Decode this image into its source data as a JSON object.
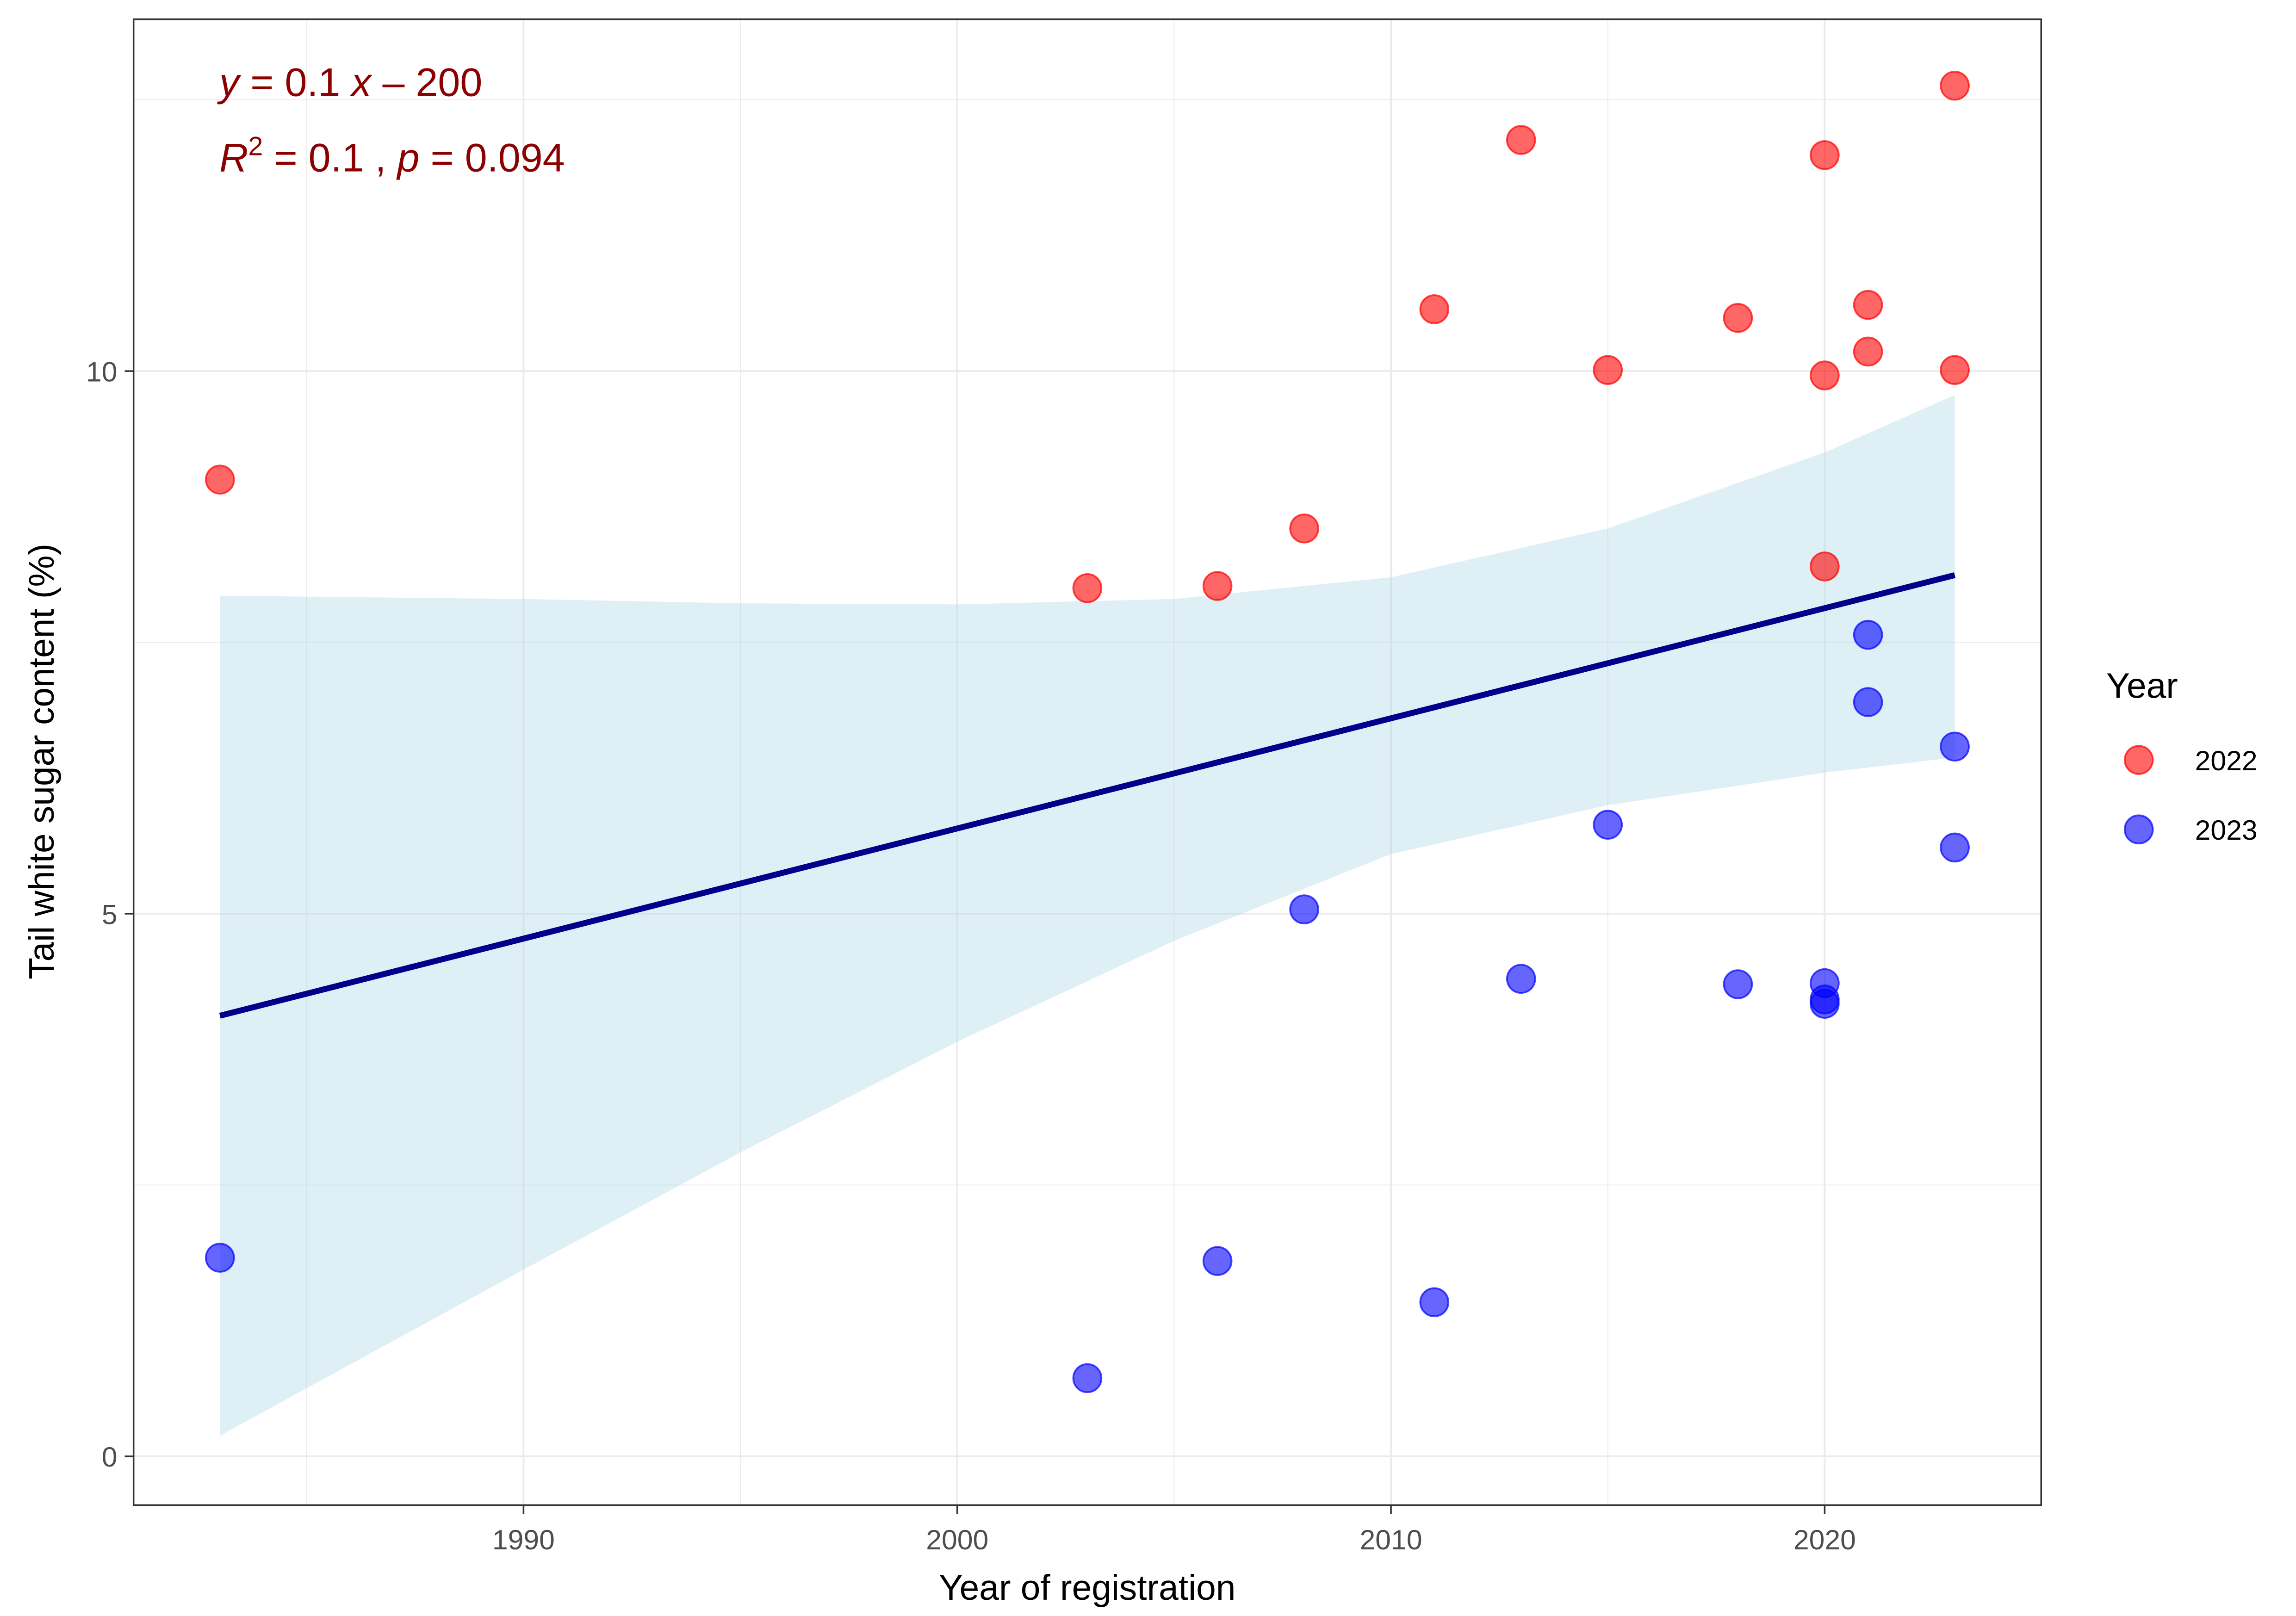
{
  "chart_data": {
    "type": "scatter",
    "title": "",
    "xlabel": "Year of registration",
    "ylabel": "Tail white sugar content (%)",
    "xlim": [
      1981,
      2025
    ],
    "ylim": [
      -0.45,
      13.4
    ],
    "x_ticks": [
      1990,
      2000,
      2010,
      2020
    ],
    "x_tick_labels": [
      "1990",
      "2000",
      "2010",
      "2020"
    ],
    "y_ticks": [
      0,
      5,
      10
    ],
    "y_tick_labels": [
      "0",
      "5",
      "10"
    ],
    "grid": true,
    "legend": {
      "title": "Year",
      "placement": "right",
      "entries": [
        {
          "label": "2022",
          "color": "#ff0000"
        },
        {
          "label": "2023",
          "color": "#0000ff"
        }
      ]
    },
    "series": [
      {
        "name": "2022",
        "color": "#ff0000",
        "points": [
          {
            "x": 1983,
            "y": 9.0
          },
          {
            "x": 2003,
            "y": 8.0
          },
          {
            "x": 2006,
            "y": 8.02
          },
          {
            "x": 2008,
            "y": 8.55
          },
          {
            "x": 2011,
            "y": 10.57
          },
          {
            "x": 2013,
            "y": 12.13
          },
          {
            "x": 2015,
            "y": 10.01
          },
          {
            "x": 2018,
            "y": 10.49
          },
          {
            "x": 2020,
            "y": 11.99
          },
          {
            "x": 2020,
            "y": 9.96
          },
          {
            "x": 2020,
            "y": 8.2
          },
          {
            "x": 2021,
            "y": 10.61
          },
          {
            "x": 2021,
            "y": 10.18
          },
          {
            "x": 2023,
            "y": 12.63
          },
          {
            "x": 2023,
            "y": 10.01
          }
        ]
      },
      {
        "name": "2023",
        "color": "#0000ff",
        "points": [
          {
            "x": 1983,
            "y": 1.83
          },
          {
            "x": 2003,
            "y": 0.72
          },
          {
            "x": 2006,
            "y": 1.8
          },
          {
            "x": 2008,
            "y": 5.04
          },
          {
            "x": 2011,
            "y": 1.42
          },
          {
            "x": 2013,
            "y": 4.4
          },
          {
            "x": 2015,
            "y": 5.82
          },
          {
            "x": 2018,
            "y": 4.35
          },
          {
            "x": 2020,
            "y": 4.36
          },
          {
            "x": 2020,
            "y": 4.21
          },
          {
            "x": 2020,
            "y": 4.17
          },
          {
            "x": 2021,
            "y": 7.57
          },
          {
            "x": 2021,
            "y": 6.95
          },
          {
            "x": 2023,
            "y": 6.54
          },
          {
            "x": 2023,
            "y": 5.61
          }
        ]
      }
    ],
    "regression": {
      "color": "#00008b",
      "band_color": "#add8e6",
      "line": [
        {
          "x": 1983,
          "y": 4.06
        },
        {
          "x": 2023,
          "y": 8.12
        }
      ],
      "confidence_band": [
        {
          "x": 1983,
          "lower": 0.19,
          "upper": 7.93
        },
        {
          "x": 1990,
          "lower": 1.72,
          "upper": 7.9
        },
        {
          "x": 1995,
          "lower": 2.8,
          "upper": 7.86
        },
        {
          "x": 2000,
          "lower": 3.82,
          "upper": 7.85
        },
        {
          "x": 2005,
          "lower": 4.75,
          "upper": 7.9
        },
        {
          "x": 2010,
          "lower": 5.55,
          "upper": 8.1
        },
        {
          "x": 2015,
          "lower": 6.0,
          "upper": 8.55
        },
        {
          "x": 2020,
          "lower": 6.3,
          "upper": 9.25
        },
        {
          "x": 2023,
          "lower": 6.44,
          "upper": 9.78
        }
      ]
    },
    "annotations": {
      "equation": {
        "y_var": "y",
        "eq_mid": " = 0.1 ",
        "x_var": "x",
        "eq_end": " – 200"
      },
      "stats": {
        "r_var": "R",
        "r_sup": "2",
        "r_mid": " = 0.1 , ",
        "p_var": "p",
        "p_end": " = 0.094"
      }
    }
  }
}
